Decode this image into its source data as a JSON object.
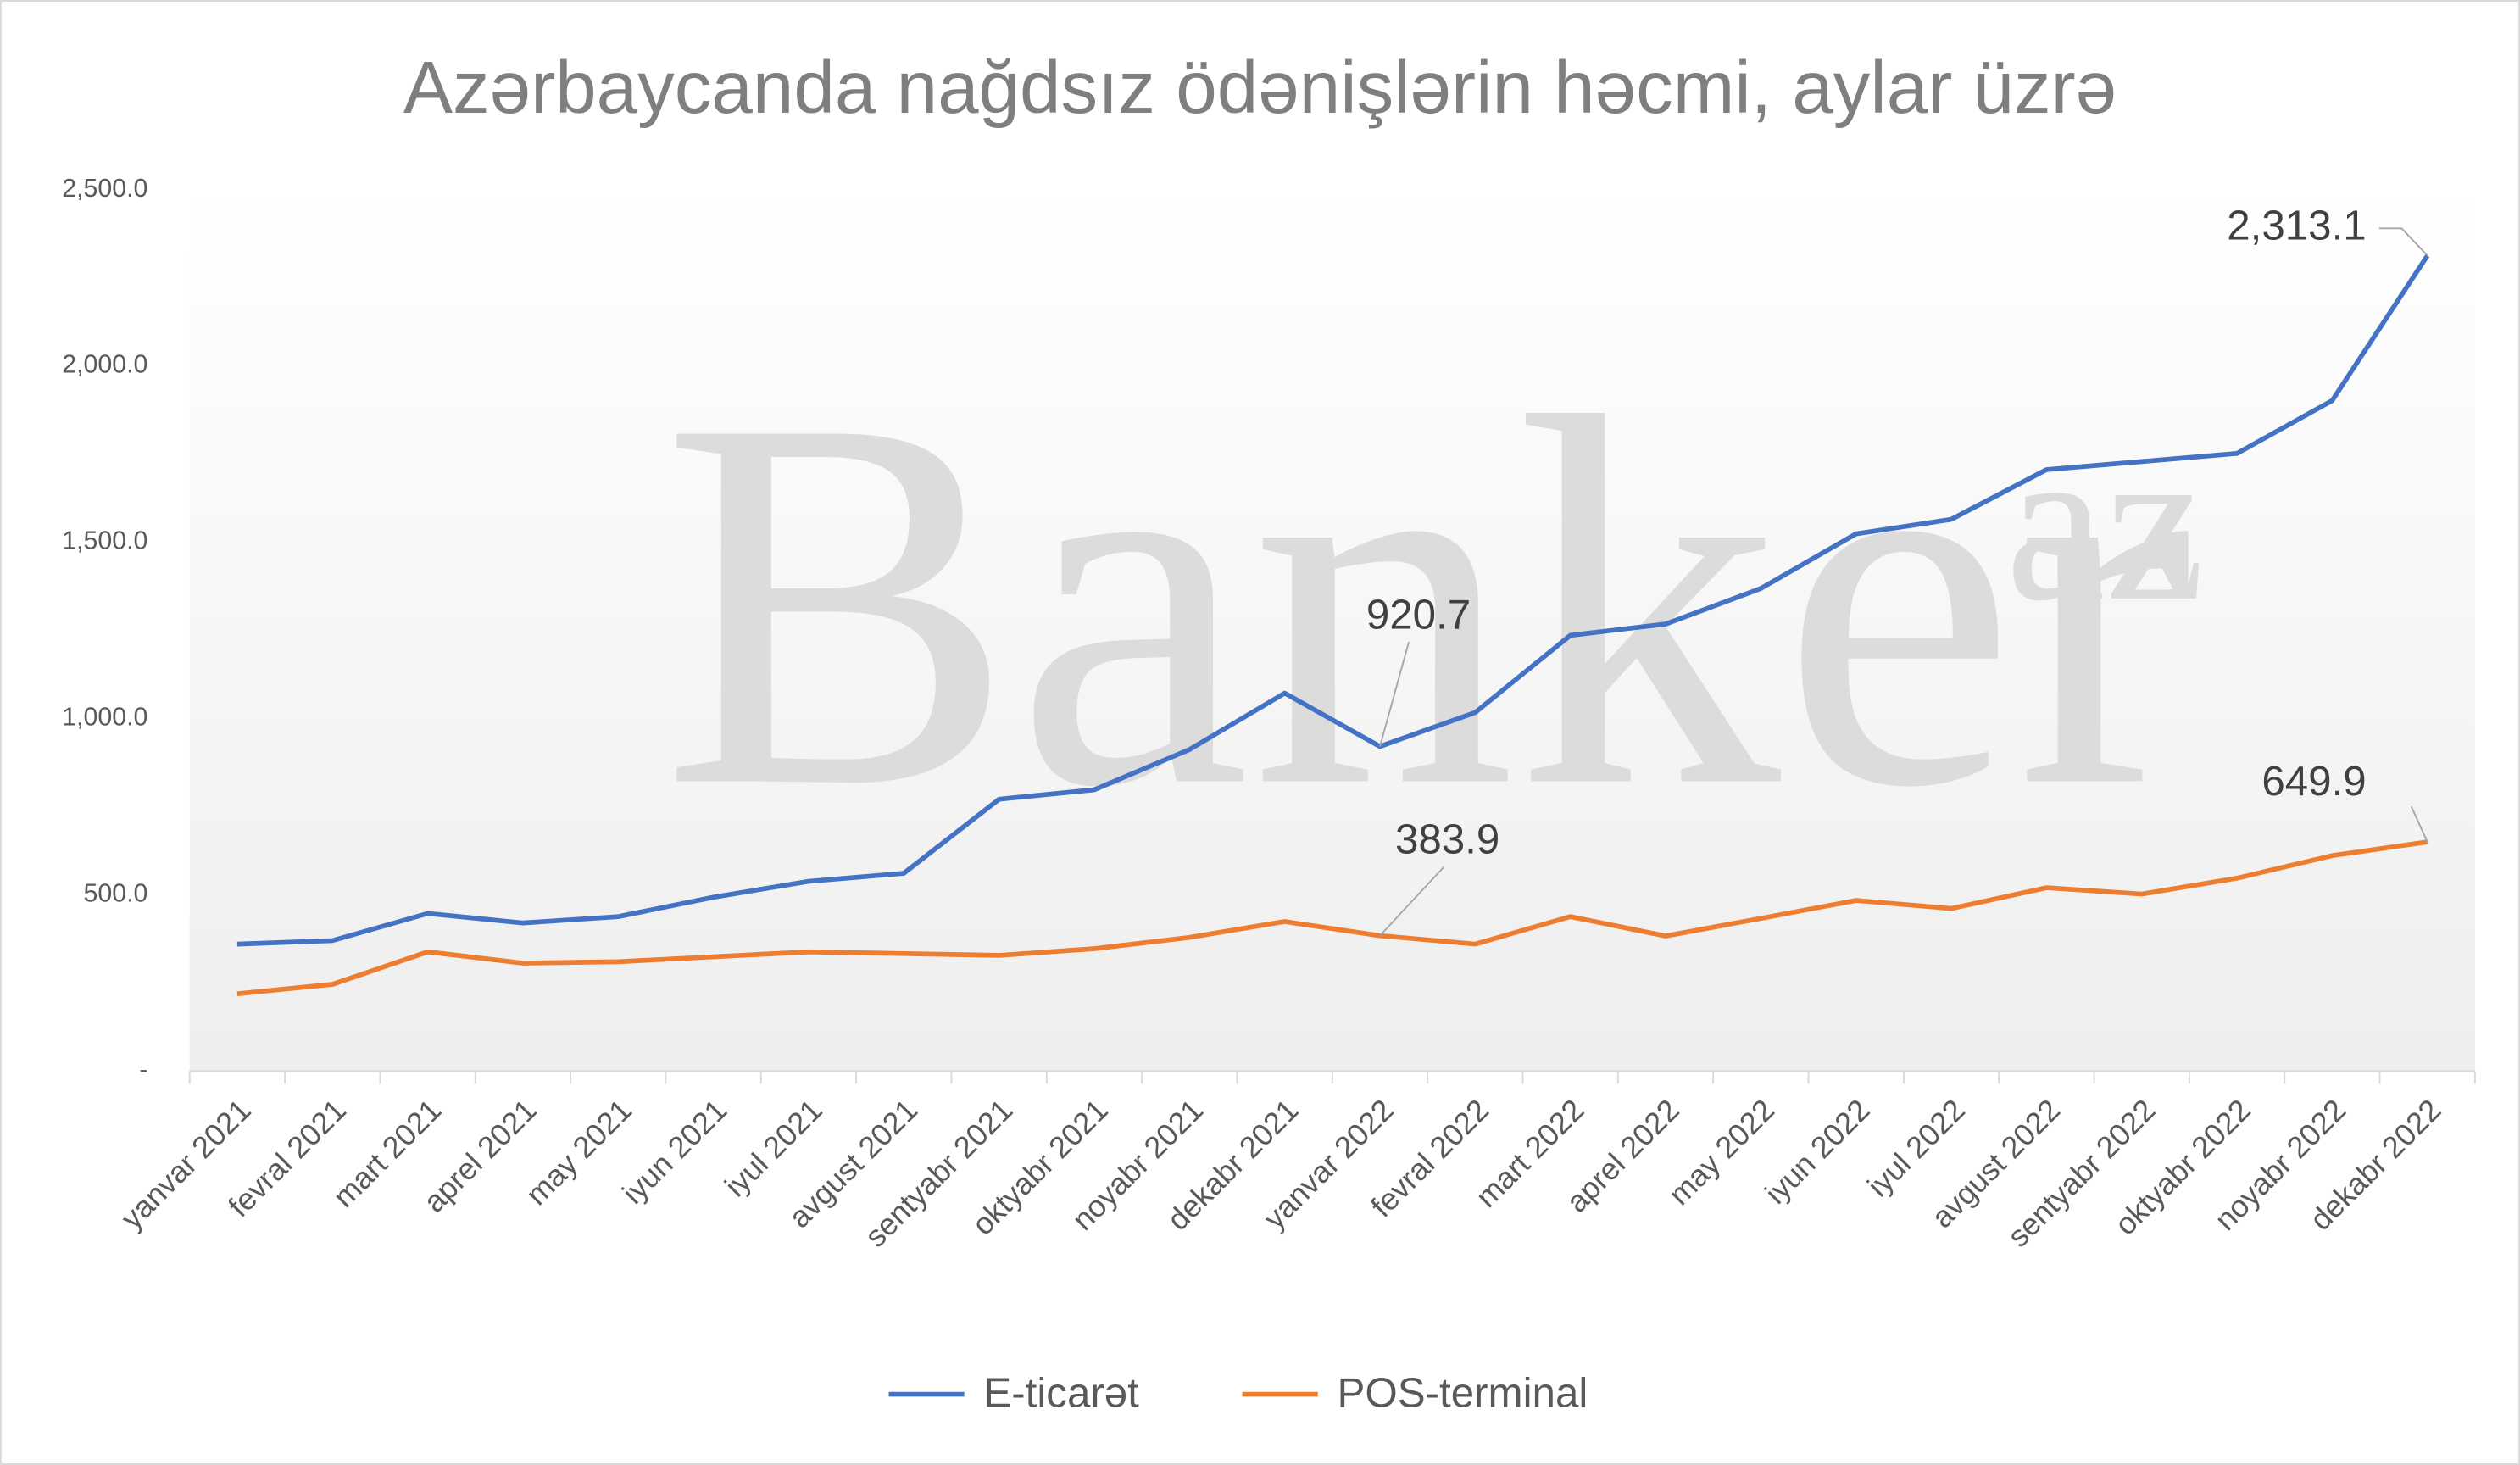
{
  "chart_data": {
    "type": "line",
    "title": "Azərbaycanda nağdsız ödənişlərin həcmi, aylar üzrə",
    "watermark": "Banker",
    "watermark_sup": "az",
    "categories": [
      "yanvar 2021",
      "fevral 2021",
      "mart 2021",
      "aprel 2021",
      "may 2021",
      "iyun 2021",
      "iyul 2021",
      "avgust 2021",
      "sentyabr 2021",
      "oktyabr 2021",
      "noyabr 2021",
      "dekabr 2021",
      "yanvar 2022",
      "fevral 2022",
      "mart 2022",
      "aprel 2022",
      "may 2022",
      "iyun 2022",
      "iyul 2022",
      "avgust 2022",
      "sentyabr 2022",
      "oktyabr 2022",
      "noyabr 2022",
      "dekabr 2022"
    ],
    "series": [
      {
        "name": "E-ticarət",
        "color": "#4472c4",
        "values": [
          360,
          370,
          447,
          420,
          438,
          493,
          538,
          561,
          771,
          798,
          912,
          1072,
          920.7,
          1017,
          1236,
          1268,
          1369,
          1524,
          1565,
          1706,
          1729,
          1752,
          1902,
          2313.1
        ],
        "value_labels": [
          null,
          null,
          null,
          null,
          null,
          null,
          null,
          null,
          null,
          null,
          null,
          null,
          "920.7",
          null,
          null,
          null,
          null,
          null,
          null,
          null,
          null,
          null,
          null,
          "2,313.1"
        ]
      },
      {
        "name": "POS-terminal",
        "color": "#ed7d31",
        "values": [
          219,
          246,
          338,
          306,
          310,
          324,
          338,
          333,
          328,
          347,
          379,
          424,
          383.9,
          360,
          438,
          383,
          433,
          484,
          461,
          520,
          502,
          547,
          611,
          649.9
        ],
        "value_labels": [
          null,
          null,
          null,
          null,
          null,
          null,
          null,
          null,
          null,
          null,
          null,
          null,
          "383.9",
          null,
          null,
          null,
          null,
          null,
          null,
          null,
          null,
          null,
          null,
          "649.9"
        ]
      }
    ],
    "ylim": [
      0,
      2500
    ],
    "yticks": [
      {
        "value": 0,
        "label": "-"
      },
      {
        "value": 500,
        "label": "500.0"
      },
      {
        "value": 1000,
        "label": "1,000.0"
      },
      {
        "value": 1500,
        "label": "1,500.0"
      },
      {
        "value": 2000,
        "label": "2,000.0"
      },
      {
        "value": 2500,
        "label": "2,500.0"
      }
    ],
    "grid": false,
    "legend": "bottom"
  }
}
